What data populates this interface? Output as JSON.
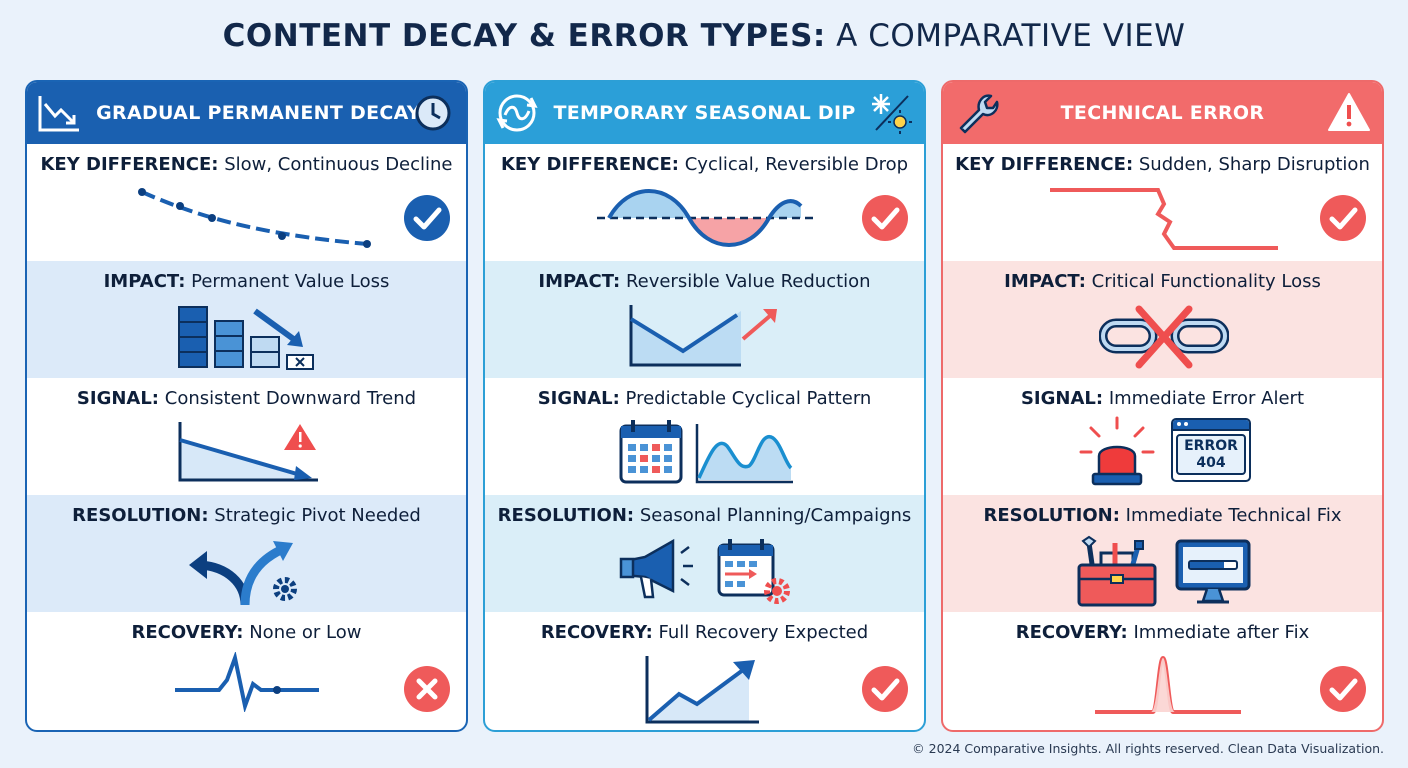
{
  "title": {
    "bold": "CONTENT DECAY & ERROR TYPES:",
    "light": "A COMPARATIVE VIEW"
  },
  "columns": [
    {
      "header": "GRADUAL PERMANENT DECAY",
      "accent": "#1a60b0",
      "header_icons": [
        "declining-chart-icon",
        "clock-icon"
      ],
      "rows": [
        {
          "key": "KEY DIFFERENCE:",
          "value": "Slow, Continuous Decline",
          "icon": "dotted-decline-line-icon",
          "badge": "check"
        },
        {
          "key": "IMPACT:",
          "value": "Permanent Value Loss",
          "icon": "shrinking-blocks-icon"
        },
        {
          "key": "SIGNAL:",
          "value": "Consistent Downward Trend",
          "icon": "downward-trend-warning-icon"
        },
        {
          "key": "RESOLUTION:",
          "value": "Strategic Pivot Needed",
          "icon": "pivot-arrows-gear-icon"
        },
        {
          "key": "RECOVERY:",
          "value": "None or Low",
          "icon": "flatline-pulse-icon",
          "badge": "cross"
        }
      ]
    },
    {
      "header": "TEMPORARY SEASONAL DIP",
      "accent": "#2b9fd8",
      "header_icons": [
        "cycle-arrows-icon",
        "snowflake-sun-icon"
      ],
      "rows": [
        {
          "key": "KEY DIFFERENCE:",
          "value": "Cyclical, Reversible Drop",
          "icon": "sine-wave-icon",
          "badge": "check"
        },
        {
          "key": "IMPACT:",
          "value": "Reversible Value Reduction",
          "icon": "dip-and-rise-icon"
        },
        {
          "key": "SIGNAL:",
          "value": "Predictable Cyclical Pattern",
          "icon": "calendar-wave-icon"
        },
        {
          "key": "RESOLUTION:",
          "value": "Seasonal Planning/Campaigns",
          "icon": "megaphone-calendar-icon"
        },
        {
          "key": "RECOVERY:",
          "value": "Full Recovery Expected",
          "icon": "rising-trend-icon",
          "badge": "check"
        }
      ]
    },
    {
      "header": "TECHNICAL ERROR",
      "accent": "#f26b6b",
      "header_icons": [
        "wrench-icon",
        "warning-icon"
      ],
      "rows": [
        {
          "key": "KEY DIFFERENCE:",
          "value": "Sudden, Sharp Disruption",
          "icon": "sharp-drop-icon",
          "badge": "check"
        },
        {
          "key": "IMPACT:",
          "value": "Critical Functionality Loss",
          "icon": "broken-link-icon"
        },
        {
          "key": "SIGNAL:",
          "value": "Immediate Error Alert",
          "icon": "siren-error-window-icon",
          "error_text_1": "ERROR",
          "error_text_2": "404"
        },
        {
          "key": "RESOLUTION:",
          "value": "Immediate Technical Fix",
          "icon": "toolbox-monitor-icon"
        },
        {
          "key": "RECOVERY:",
          "value": "Immediate after Fix",
          "icon": "spike-icon",
          "badge": "check"
        }
      ]
    }
  ],
  "footer": "© 2024 Comparative Insights. All rights reserved. Clean Data Visualization."
}
